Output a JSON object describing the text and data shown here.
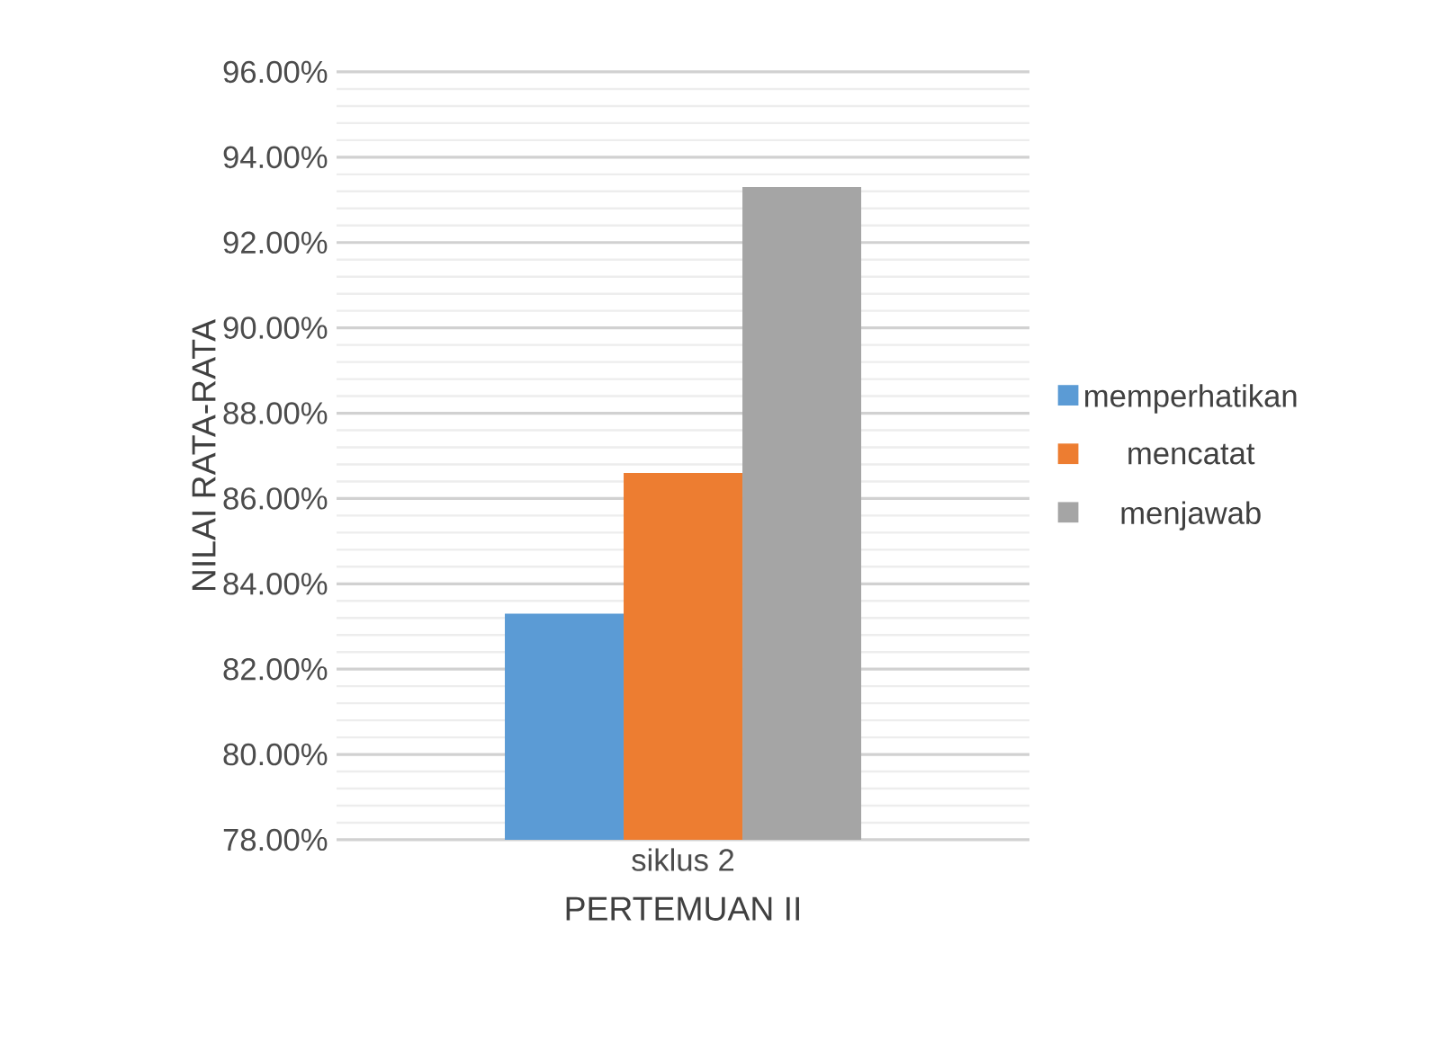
{
  "chart_data": {
    "type": "bar",
    "categories": [
      "siklus 2"
    ],
    "series": [
      {
        "name": "memperhatikan",
        "color": "#5b9bd5",
        "values": [
          83.3
        ]
      },
      {
        "name": "mencatat",
        "color": "#ed7d31",
        "values": [
          86.6
        ]
      },
      {
        "name": "menjawab",
        "color": "#a5a5a5",
        "values": [
          93.3
        ]
      }
    ],
    "xlabel": "PERTEMUAN II",
    "ylabel": "NILAI RATA-RATA",
    "ylim": [
      78,
      96
    ],
    "yticks": [
      {
        "value": 78,
        "label": "78.00%"
      },
      {
        "value": 80,
        "label": "80.00%"
      },
      {
        "value": 82,
        "label": "82.00%"
      },
      {
        "value": 84,
        "label": "84.00%"
      },
      {
        "value": 86,
        "label": "86.00%"
      },
      {
        "value": 88,
        "label": "88.00%"
      },
      {
        "value": 90,
        "label": "90.00%"
      },
      {
        "value": 92,
        "label": "92.00%"
      },
      {
        "value": 94,
        "label": "94.00%"
      },
      {
        "value": 96,
        "label": "96.00%"
      }
    ],
    "grid": "y",
    "legend": "right"
  }
}
